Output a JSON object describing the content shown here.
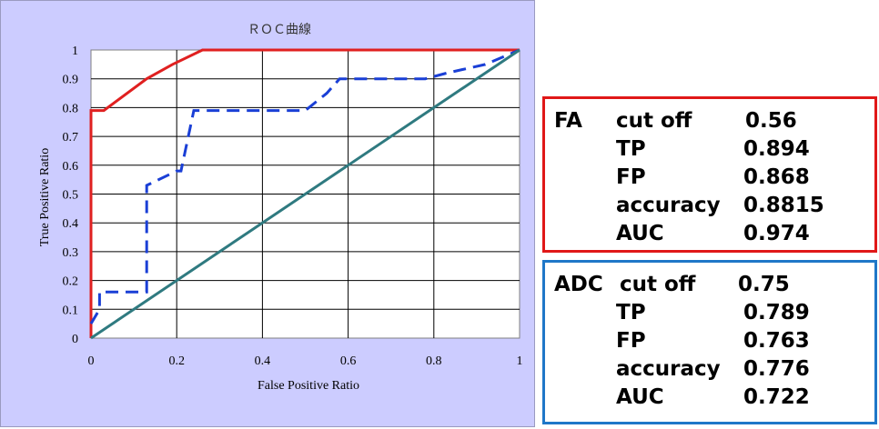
{
  "chart_data": {
    "type": "line",
    "title": "ＲＯＣ曲線",
    "xlabel": "False Positive Ratio",
    "ylabel": "True Positive Ratio",
    "xlim": [
      0,
      1
    ],
    "ylim": [
      0,
      1
    ],
    "x_ticks": [
      "0",
      "0.2",
      "0.4",
      "0.6",
      "0.8",
      "1"
    ],
    "y_ticks": [
      "0",
      "0.1",
      "0.2",
      "0.3",
      "0.4",
      "0.5",
      "0.6",
      "0.7",
      "0.8",
      "0.9",
      "1"
    ],
    "grid": true,
    "background": "#ccccff",
    "plot_background": "#ffffff",
    "series": [
      {
        "color": "#e02020",
        "style": "solid",
        "x": [
          0,
          0,
          0.03,
          0.13,
          0.19,
          0.26,
          1
        ],
        "y": [
          0,
          0.79,
          0.79,
          0.9,
          0.95,
          1,
          1
        ]
      },
      {
        "color": "#1a3fd6",
        "style": "dashed",
        "x": [
          0,
          0.02,
          0.02,
          0.13,
          0.13,
          0.13,
          0.2,
          0.21,
          0.24,
          0.5,
          0.55,
          0.58,
          0.78,
          0.83,
          0.92,
          1
        ],
        "y": [
          0.05,
          0.1,
          0.16,
          0.16,
          0.16,
          0.53,
          0.58,
          0.58,
          0.79,
          0.79,
          0.85,
          0.9,
          0.9,
          0.92,
          0.95,
          1
        ]
      },
      {
        "color": "#2f7a80",
        "style": "solid",
        "x": [
          0,
          1
        ],
        "y": [
          0,
          1
        ]
      }
    ]
  },
  "stats": {
    "fa": {
      "name": "FA",
      "border_color": "#e01818",
      "rows": [
        {
          "label": "cut off",
          "value": "0.56"
        },
        {
          "label": "TP",
          "value": "0.894"
        },
        {
          "label": "FP",
          "value": "0.868"
        },
        {
          "label": "accuracy",
          "value": "0.8815"
        },
        {
          "label": "AUC",
          "value": "0.974"
        }
      ]
    },
    "adc": {
      "name": "ADC",
      "border_color": "#1f77c8",
      "rows": [
        {
          "label": "cut off",
          "value": "0.75"
        },
        {
          "label": "TP",
          "value": "0.789"
        },
        {
          "label": "FP",
          "value": "0.763"
        },
        {
          "label": "accuracy",
          "value": "0.776"
        },
        {
          "label": "AUC",
          "value": "0.722"
        }
      ]
    }
  }
}
